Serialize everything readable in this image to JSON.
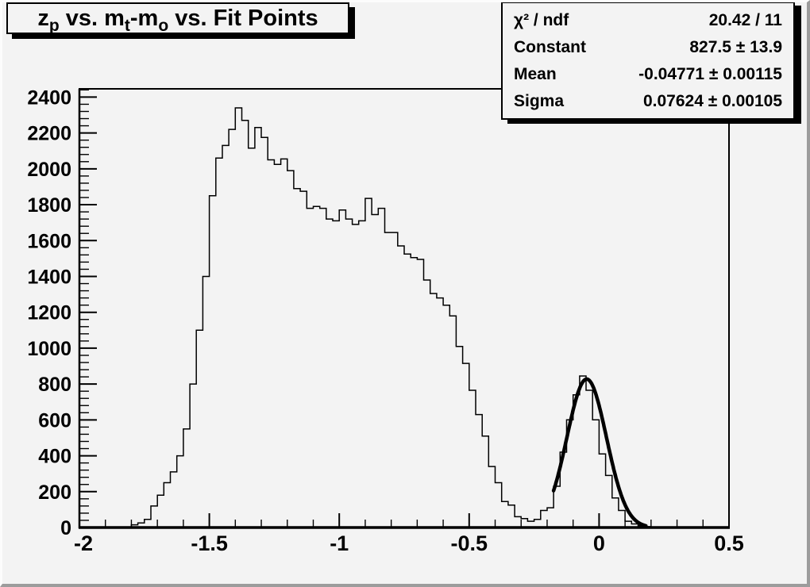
{
  "colors": {
    "canvas_bg": "#f3f3f3",
    "line": "#000000",
    "text": "#000000",
    "bevel_light": "#fcfcfc",
    "bevel_dark": "#9c9c9c"
  },
  "title_pave": {
    "text": "z_p vs. m_t-m_o vs. Fit Points",
    "segments": [
      {
        "t": "z",
        "sub": "p"
      },
      {
        "t": " vs. m",
        "sub": "t"
      },
      {
        "t": "-m",
        "sub": "o"
      },
      {
        "t": " vs. Fit Points",
        "sub": ""
      }
    ]
  },
  "stats_pave": {
    "rows": [
      {
        "label": "χ² / ndf",
        "value": "20.42 / 11"
      },
      {
        "label": "Constant",
        "value": "827.5 ± 13.9"
      },
      {
        "label": "Mean",
        "value": "-0.04771 ± 0.00115"
      },
      {
        "label": "Sigma",
        "value": "0.07624 ± 0.00105"
      }
    ]
  },
  "chart_data": {
    "type": "histogram",
    "title": "z_p vs. m_t-m_o vs. Fit Points",
    "xlabel": "",
    "ylabel": "",
    "x_range": [
      -2,
      0.5
    ],
    "y_max": 2446,
    "x_ticks": [
      -2,
      -1.5,
      -1,
      -0.5,
      0,
      0.5
    ],
    "x_tick_labels": [
      "-2",
      "-1.5",
      "-1",
      "-0.5",
      "0",
      "0.5"
    ],
    "x_minor_step": 0.1,
    "y_ticks": [
      0,
      200,
      400,
      600,
      800,
      1000,
      1200,
      1400,
      1600,
      1800,
      2000,
      2200,
      2400
    ],
    "y_tick_labels": [
      "0",
      "200",
      "400",
      "600",
      "800",
      "1000",
      "1200",
      "1400",
      "1600",
      "1800",
      "2000",
      "2200",
      "2400"
    ],
    "y_minor_step": 40,
    "grid": false,
    "bin_start": -2,
    "bin_width": 0.025,
    "bins": [
      0,
      0,
      0,
      0,
      0,
      0,
      0,
      0,
      15,
      25,
      45,
      120,
      180,
      250,
      310,
      400,
      550,
      800,
      1100,
      1400,
      1850,
      2060,
      2130,
      2220,
      2340,
      2270,
      2115,
      2230,
      2175,
      2050,
      2025,
      2055,
      1990,
      1890,
      1875,
      1780,
      1790,
      1780,
      1720,
      1710,
      1770,
      1720,
      1690,
      1710,
      1835,
      1745,
      1780,
      1645,
      1645,
      1570,
      1525,
      1505,
      1495,
      1380,
      1305,
      1280,
      1240,
      1180,
      1010,
      915,
      765,
      630,
      510,
      340,
      250,
      145,
      125,
      60,
      50,
      35,
      45,
      95,
      110,
      230,
      420,
      600,
      740,
      845,
      765,
      600,
      410,
      290,
      165,
      95,
      35,
      20,
      10,
      5,
      3,
      2,
      0,
      0,
      0,
      0,
      0,
      0,
      0,
      0,
      0,
      0
    ],
    "fit": {
      "type": "gaussian",
      "constant": 827.5,
      "mean": -0.04771,
      "sigma": 0.07624,
      "draw_range": [
        -0.175,
        0.18
      ],
      "chi2": 20.42,
      "ndf": 11
    }
  }
}
